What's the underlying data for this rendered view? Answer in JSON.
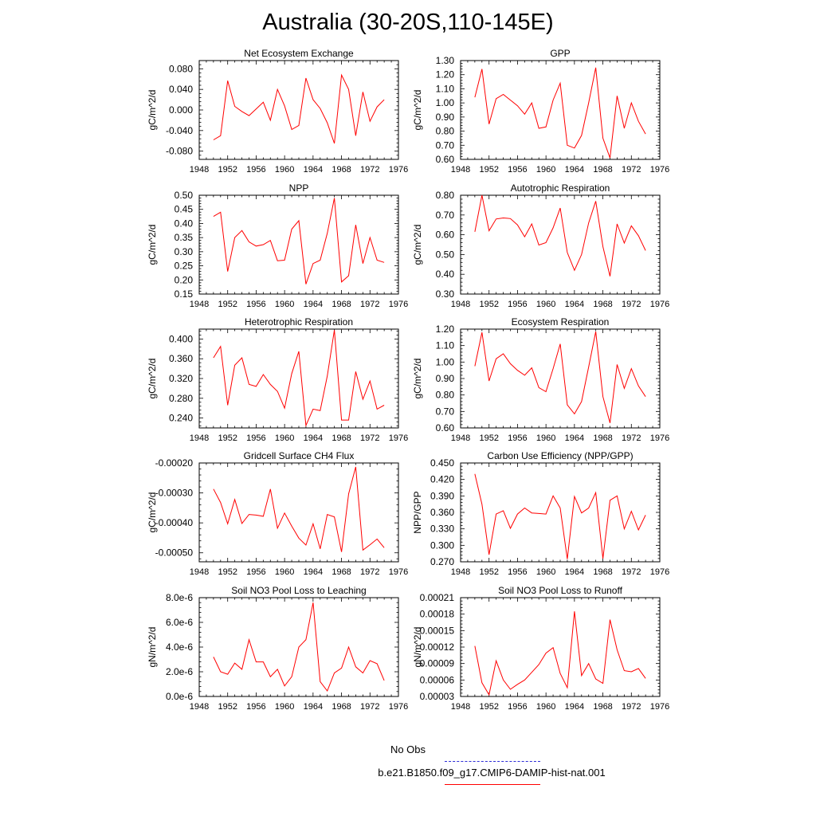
{
  "page": {
    "title": "Australia (30-20S,110-145E)"
  },
  "legend": {
    "entries": [
      {
        "label": "No Obs",
        "color": "#0000cc",
        "style": "dashed"
      },
      {
        "label": "b.e21.B1850.f09_g17.CMIP6-DAMIP-hist-nat.001",
        "color": "#ff0000",
        "style": "solid"
      }
    ]
  },
  "chart_data": [
    {
      "type": "line",
      "title": "Net Ecosystem Exchange",
      "ylabel": "gC/m^2/d",
      "xlim": [
        1948,
        1976
      ],
      "x_ticks": [
        1948,
        1952,
        1956,
        1960,
        1964,
        1968,
        1972,
        1976
      ],
      "ylim": [
        -0.096,
        0.096
      ],
      "y_ticks": [
        -0.08,
        -0.04,
        0.0,
        0.04,
        0.08
      ],
      "y_tick_labels": [
        "-0.080",
        "-0.040",
        "0.000",
        "0.040",
        "0.080"
      ],
      "series": [
        {
          "color": "#ff0000",
          "x": [
            1950,
            1951,
            1952,
            1953,
            1954,
            1955,
            1956,
            1957,
            1958,
            1959,
            1960,
            1961,
            1962,
            1963,
            1964,
            1965,
            1966,
            1967,
            1968,
            1969,
            1970,
            1971,
            1972,
            1973,
            1974
          ],
          "y": [
            -0.058,
            -0.05,
            0.057,
            0.007,
            -0.003,
            -0.011,
            0.002,
            0.015,
            -0.02,
            0.04,
            0.008,
            -0.038,
            -0.03,
            0.062,
            0.02,
            0.003,
            -0.025,
            -0.065,
            0.068,
            0.04,
            -0.05,
            0.035,
            -0.022,
            0.006,
            0.02
          ]
        }
      ]
    },
    {
      "type": "line",
      "title": "GPP",
      "ylabel": "gC/m^2/d",
      "xlim": [
        1948,
        1976
      ],
      "x_ticks": [
        1948,
        1952,
        1956,
        1960,
        1964,
        1968,
        1972,
        1976
      ],
      "ylim": [
        0.6,
        1.3
      ],
      "y_ticks": [
        0.6,
        0.7,
        0.8,
        0.9,
        1.0,
        1.1,
        1.2,
        1.3
      ],
      "y_tick_labels": [
        "0.60",
        "0.70",
        "0.80",
        "0.90",
        "1.00",
        "1.10",
        "1.20",
        "1.30"
      ],
      "series": [
        {
          "color": "#ff0000",
          "x": [
            1950,
            1951,
            1952,
            1953,
            1954,
            1955,
            1956,
            1957,
            1958,
            1959,
            1960,
            1961,
            1962,
            1963,
            1964,
            1965,
            1966,
            1967,
            1968,
            1969,
            1970,
            1971,
            1972,
            1973,
            1974
          ],
          "y": [
            1.04,
            1.24,
            0.85,
            1.03,
            1.06,
            1.02,
            0.98,
            0.92,
            1.0,
            0.82,
            0.83,
            1.02,
            1.14,
            0.7,
            0.68,
            0.77,
            1.0,
            1.25,
            0.75,
            0.61,
            1.05,
            0.82,
            1.0,
            0.87,
            0.78
          ]
        }
      ]
    },
    {
      "type": "line",
      "title": "NPP",
      "ylabel": "gC/m^2/d",
      "xlim": [
        1948,
        1976
      ],
      "x_ticks": [
        1948,
        1952,
        1956,
        1960,
        1964,
        1968,
        1972,
        1976
      ],
      "ylim": [
        0.15,
        0.5
      ],
      "y_ticks": [
        0.15,
        0.2,
        0.25,
        0.3,
        0.35,
        0.4,
        0.45,
        0.5
      ],
      "y_tick_labels": [
        "0.15",
        "0.20",
        "0.25",
        "0.30",
        "0.35",
        "0.40",
        "0.45",
        "0.50"
      ],
      "series": [
        {
          "color": "#ff0000",
          "x": [
            1950,
            1951,
            1952,
            1953,
            1954,
            1955,
            1956,
            1957,
            1958,
            1959,
            1960,
            1961,
            1962,
            1963,
            1964,
            1965,
            1966,
            1967,
            1968,
            1969,
            1970,
            1971,
            1972,
            1973,
            1974
          ],
          "y": [
            0.425,
            0.44,
            0.23,
            0.35,
            0.375,
            0.335,
            0.32,
            0.325,
            0.34,
            0.268,
            0.27,
            0.38,
            0.41,
            0.185,
            0.258,
            0.27,
            0.365,
            0.49,
            0.193,
            0.215,
            0.395,
            0.258,
            0.35,
            0.27,
            0.262
          ]
        }
      ]
    },
    {
      "type": "line",
      "title": "Autotrophic Respiration",
      "ylabel": "gC/m^2/d",
      "xlim": [
        1948,
        1976
      ],
      "x_ticks": [
        1948,
        1952,
        1956,
        1960,
        1964,
        1968,
        1972,
        1976
      ],
      "ylim": [
        0.3,
        0.8
      ],
      "y_ticks": [
        0.3,
        0.4,
        0.5,
        0.6,
        0.7,
        0.8
      ],
      "y_tick_labels": [
        "0.30",
        "0.40",
        "0.50",
        "0.60",
        "0.70",
        "0.80"
      ],
      "series": [
        {
          "color": "#ff0000",
          "x": [
            1950,
            1951,
            1952,
            1953,
            1954,
            1955,
            1956,
            1957,
            1958,
            1959,
            1960,
            1961,
            1962,
            1963,
            1964,
            1965,
            1966,
            1967,
            1968,
            1969,
            1970,
            1971,
            1972,
            1973,
            1974
          ],
          "y": [
            0.615,
            0.8,
            0.62,
            0.68,
            0.685,
            0.682,
            0.65,
            0.59,
            0.655,
            0.548,
            0.56,
            0.635,
            0.735,
            0.51,
            0.42,
            0.5,
            0.66,
            0.77,
            0.54,
            0.39,
            0.655,
            0.558,
            0.645,
            0.595,
            0.52
          ]
        }
      ]
    },
    {
      "type": "line",
      "title": "Heterotrophic Respiration",
      "ylabel": "gC/m^2/d",
      "xlim": [
        1948,
        1976
      ],
      "x_ticks": [
        1948,
        1952,
        1956,
        1960,
        1964,
        1968,
        1972,
        1976
      ],
      "ylim": [
        0.22,
        0.42
      ],
      "y_ticks": [
        0.24,
        0.28,
        0.32,
        0.36,
        0.4
      ],
      "y_tick_labels": [
        "0.240",
        "0.280",
        "0.320",
        "0.360",
        "0.400"
      ],
      "series": [
        {
          "color": "#ff0000",
          "x": [
            1950,
            1951,
            1952,
            1953,
            1954,
            1955,
            1956,
            1957,
            1958,
            1959,
            1960,
            1961,
            1962,
            1963,
            1964,
            1965,
            1966,
            1967,
            1968,
            1969,
            1970,
            1971,
            1972,
            1973,
            1974
          ],
          "y": [
            0.362,
            0.385,
            0.266,
            0.347,
            0.362,
            0.308,
            0.304,
            0.328,
            0.308,
            0.294,
            0.26,
            0.33,
            0.375,
            0.225,
            0.258,
            0.255,
            0.325,
            0.418,
            0.236,
            0.236,
            0.334,
            0.278,
            0.315,
            0.258,
            0.266
          ]
        }
      ]
    },
    {
      "type": "line",
      "title": "Ecosystem Respiration",
      "ylabel": "gC/m^2/d",
      "xlim": [
        1948,
        1976
      ],
      "x_ticks": [
        1948,
        1952,
        1956,
        1960,
        1964,
        1968,
        1972,
        1976
      ],
      "ylim": [
        0.6,
        1.2
      ],
      "y_ticks": [
        0.6,
        0.7,
        0.8,
        0.9,
        1.0,
        1.1,
        1.2
      ],
      "y_tick_labels": [
        "0.60",
        "0.70",
        "0.80",
        "0.90",
        "1.00",
        "1.10",
        "1.20"
      ],
      "series": [
        {
          "color": "#ff0000",
          "x": [
            1950,
            1951,
            1952,
            1953,
            1954,
            1955,
            1956,
            1957,
            1958,
            1959,
            1960,
            1961,
            1962,
            1963,
            1964,
            1965,
            1966,
            1967,
            1968,
            1969,
            1970,
            1971,
            1972,
            1973,
            1974
          ],
          "y": [
            0.975,
            1.18,
            0.885,
            1.02,
            1.05,
            0.99,
            0.95,
            0.92,
            0.965,
            0.845,
            0.82,
            0.96,
            1.11,
            0.74,
            0.685,
            0.76,
            0.97,
            1.185,
            0.79,
            0.63,
            0.985,
            0.84,
            0.96,
            0.855,
            0.79
          ]
        }
      ]
    },
    {
      "type": "line",
      "title": "Gridcell Surface CH4 Flux",
      "ylabel": "gC/m^2/d",
      "xlim": [
        1948,
        1976
      ],
      "x_ticks": [
        1948,
        1952,
        1956,
        1960,
        1964,
        1968,
        1972,
        1976
      ],
      "ylim": [
        -0.00053,
        -0.0002
      ],
      "y_ticks": [
        -0.0005,
        -0.0004,
        -0.0003,
        -0.0002
      ],
      "y_tick_labels": [
        "-0.00050",
        "-0.00040",
        "-0.00030",
        "-0.00020"
      ],
      "series": [
        {
          "color": "#ff0000",
          "x": [
            1950,
            1951,
            1952,
            1953,
            1954,
            1955,
            1956,
            1957,
            1958,
            1959,
            1960,
            1961,
            1962,
            1963,
            1964,
            1965,
            1966,
            1967,
            1968,
            1969,
            1970,
            1971,
            1972,
            1973,
            1974
          ],
          "y": [
            -0.000287,
            -0.000332,
            -0.000403,
            -0.000322,
            -0.000402,
            -0.000372,
            -0.000374,
            -0.000378,
            -0.000287,
            -0.000418,
            -0.000367,
            -0.000411,
            -0.000451,
            -0.000474,
            -0.000403,
            -0.000487,
            -0.000372,
            -0.00038,
            -0.000497,
            -0.000303,
            -0.000213,
            -0.000491,
            -0.000473,
            -0.000454,
            -0.000483
          ]
        }
      ]
    },
    {
      "type": "line",
      "title": "Carbon Use Efficiency (NPP/GPP)",
      "ylabel": "NPP/GPP",
      "xlim": [
        1948,
        1976
      ],
      "x_ticks": [
        1948,
        1952,
        1956,
        1960,
        1964,
        1968,
        1972,
        1976
      ],
      "ylim": [
        0.27,
        0.45
      ],
      "y_ticks": [
        0.27,
        0.3,
        0.33,
        0.36,
        0.39,
        0.42,
        0.45
      ],
      "y_tick_labels": [
        "0.270",
        "0.300",
        "0.330",
        "0.360",
        "0.390",
        "0.420",
        "0.450"
      ],
      "series": [
        {
          "color": "#ff0000",
          "x": [
            1950,
            1951,
            1952,
            1953,
            1954,
            1955,
            1956,
            1957,
            1958,
            1959,
            1960,
            1961,
            1962,
            1963,
            1964,
            1965,
            1966,
            1967,
            1968,
            1969,
            1970,
            1971,
            1972,
            1973,
            1974
          ],
          "y": [
            0.43,
            0.375,
            0.283,
            0.357,
            0.363,
            0.331,
            0.357,
            0.368,
            0.359,
            0.358,
            0.357,
            0.39,
            0.368,
            0.275,
            0.389,
            0.359,
            0.368,
            0.396,
            0.276,
            0.382,
            0.39,
            0.33,
            0.362,
            0.328,
            0.355
          ]
        }
      ]
    },
    {
      "type": "line",
      "title": "Soil NO3 Pool Loss to Leaching",
      "ylabel": "gN/m^2/d",
      "xlim": [
        1948,
        1976
      ],
      "x_ticks": [
        1948,
        1952,
        1956,
        1960,
        1964,
        1968,
        1972,
        1976
      ],
      "ylim": [
        0,
        8e-06
      ],
      "y_ticks": [
        0,
        2e-06,
        4e-06,
        6e-06,
        8e-06
      ],
      "y_tick_labels": [
        "0.0e-6",
        "2.0e-6",
        "4.0e-6",
        "6.0e-6",
        "8.0e-6"
      ],
      "series": [
        {
          "color": "#ff0000",
          "x": [
            1950,
            1951,
            1952,
            1953,
            1954,
            1955,
            1956,
            1957,
            1958,
            1959,
            1960,
            1961,
            1962,
            1963,
            1964,
            1965,
            1966,
            1967,
            1968,
            1969,
            1970,
            1971,
            1972,
            1973,
            1974
          ],
          "y": [
            3.2e-06,
            2e-06,
            1.8e-06,
            2.7e-06,
            2.2e-06,
            4.6e-06,
            2.8e-06,
            2.8e-06,
            1.6e-06,
            2.2e-06,
            8.5e-07,
            1.6e-06,
            4e-06,
            4.6e-06,
            7.6e-06,
            1.2e-06,
            4.5e-07,
            1.9e-06,
            2.3e-06,
            4e-06,
            2.4e-06,
            1.9e-06,
            2.9e-06,
            2.65e-06,
            1.3e-06
          ]
        }
      ]
    },
    {
      "type": "line",
      "title": "Soil NO3 Pool Loss to Runoff",
      "ylabel": "gN/m^2/d",
      "xlim": [
        1948,
        1976
      ],
      "x_ticks": [
        1948,
        1952,
        1956,
        1960,
        1964,
        1968,
        1972,
        1976
      ],
      "ylim": [
        3e-05,
        0.00021
      ],
      "y_ticks": [
        3e-05,
        6e-05,
        9e-05,
        0.00012,
        0.00015,
        0.00018,
        0.00021
      ],
      "y_tick_labels": [
        "0.00003",
        "0.00006",
        "0.00009",
        "0.00012",
        "0.00015",
        "0.00018",
        "0.00021"
      ],
      "series": [
        {
          "color": "#ff0000",
          "x": [
            1950,
            1951,
            1952,
            1953,
            1954,
            1955,
            1956,
            1957,
            1958,
            1959,
            1960,
            1961,
            1962,
            1963,
            1964,
            1965,
            1966,
            1967,
            1968,
            1969,
            1970,
            1971,
            1972,
            1973,
            1974
          ],
          "y": [
            0.000122,
            5.5e-05,
            3.3e-05,
            9.5e-05,
            6e-05,
            4.3e-05,
            5.2e-05,
            6e-05,
            7.4e-05,
            8.8e-05,
            0.000109,
            0.000119,
            7.2e-05,
            4.6e-05,
            0.000185,
            6.8e-05,
            9e-05,
            6.2e-05,
            5.4e-05,
            0.00017,
            0.000115,
            7.7e-05,
            7.5e-05,
            8.1e-05,
            6.3e-05
          ]
        }
      ]
    }
  ]
}
